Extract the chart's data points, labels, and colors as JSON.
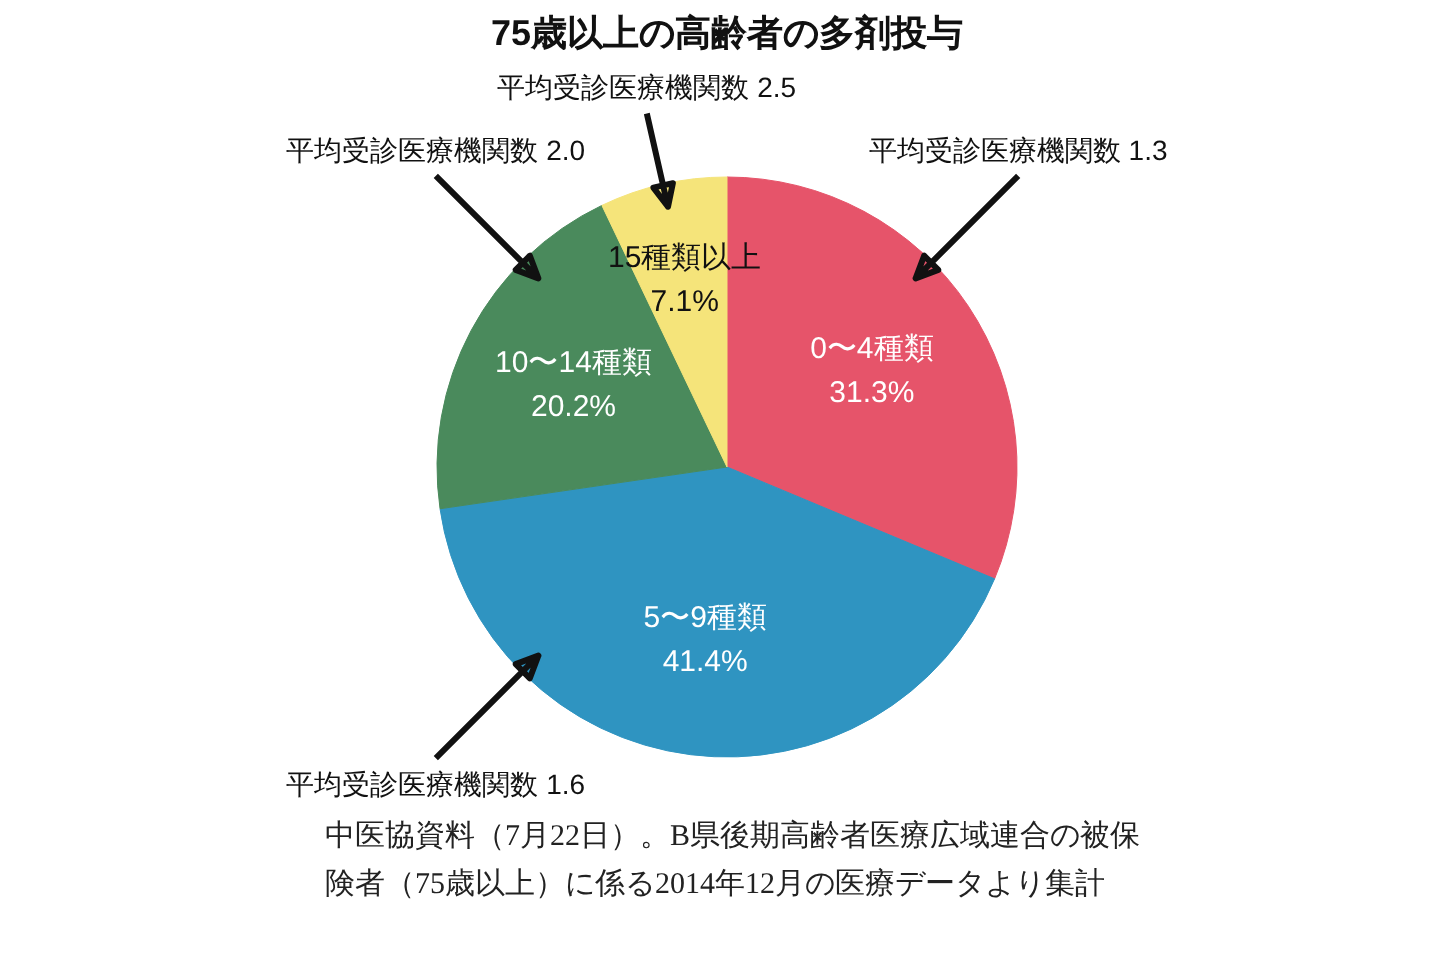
{
  "chart_data": {
    "type": "pie",
    "title": "75歳以上の高齢者の多剤投与",
    "categories": [
      "0〜4種類",
      "5〜9種類",
      "10〜14種類",
      "15種類以上"
    ],
    "values": [
      31.3,
      41.4,
      20.2,
      7.1
    ],
    "colors": [
      "#e6546a",
      "#2f94c1",
      "#4a8a5c",
      "#f5e47a"
    ],
    "value_labels": [
      "31.3%",
      "41.4%",
      "20.2%",
      "7.1%"
    ],
    "annotations": [
      {
        "text": "平均受診医療機関数 2.5",
        "x": "15種類以上"
      },
      {
        "text": "平均受診医療機関数 2.0",
        "x": "10〜14種類"
      },
      {
        "text": "平均受診医療機関数 1.3",
        "x": "0〜4種類"
      },
      {
        "text": "平均受診医療機関数 1.6",
        "x": "5〜9種類"
      },
      "中医協資料（7月22日）。B県後期高齢者医療広域連合の被保険者（75歳以上）に係る2014年12月の医療データより集計"
    ]
  }
}
